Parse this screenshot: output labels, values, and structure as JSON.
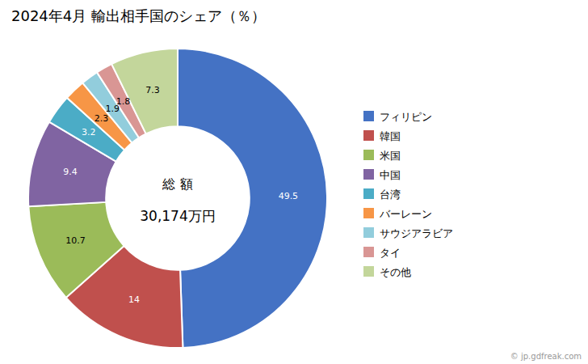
{
  "chart_data": {
    "type": "donut",
    "title": "2024年4月 輸出相手国のシェア（％）",
    "labels": [
      "フィリピン",
      "韓国",
      "米国",
      "中国",
      "台湾",
      "バーレーン",
      "サウジアラビア",
      "タイ",
      "その他"
    ],
    "values": [
      49.5,
      14.0,
      10.7,
      9.4,
      3.2,
      2.3,
      1.9,
      1.8,
      7.3
    ],
    "colors": [
      "#4472C4",
      "#C0504D",
      "#9BBB59",
      "#8064A2",
      "#4BACC6",
      "#F79646",
      "#92CDDC",
      "#D99694",
      "#C3D69B"
    ],
    "annotations": [
      "総 額",
      "30,174万円",
      "© jp.gdfreak.com"
    ],
    "data_labels": true,
    "legend": "right"
  }
}
